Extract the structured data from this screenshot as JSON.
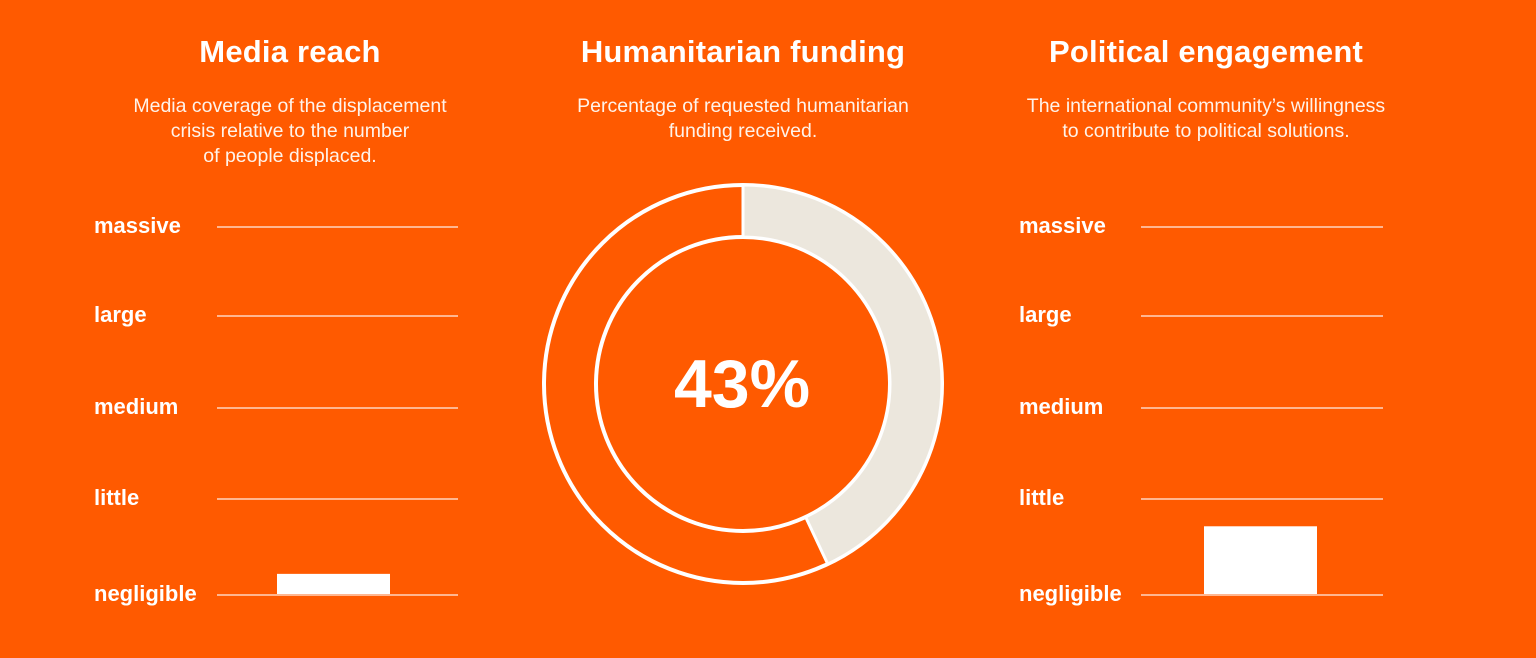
{
  "colors": {
    "background": "#FF5A00",
    "foreground": "#FFFFFF",
    "ring_fill": "#ECE7DD"
  },
  "panels": {
    "media": {
      "title": "Media reach",
      "description": [
        "Media coverage of the displacement",
        "crisis relative to the number",
        "of people displaced."
      ]
    },
    "funding": {
      "title": "Humanitarian funding",
      "description": [
        "Percentage of requested humanitarian",
        "funding received."
      ]
    },
    "political": {
      "title": "Political engagement",
      "description": [
        "The international community’s willingness",
        "to contribute to political solutions."
      ]
    }
  },
  "chart_data": [
    {
      "type": "bar",
      "title": "Media reach",
      "levels": [
        "massive",
        "large",
        "medium",
        "little",
        "negligible"
      ],
      "value": 0.22,
      "ylim": [
        0,
        4
      ]
    },
    {
      "type": "pie",
      "title": "Humanitarian funding",
      "value_percent": 43,
      "label": "43%"
    },
    {
      "type": "bar",
      "title": "Political engagement",
      "levels": [
        "massive",
        "large",
        "medium",
        "little",
        "negligible"
      ],
      "value": 0.74,
      "ylim": [
        0,
        4
      ]
    }
  ]
}
